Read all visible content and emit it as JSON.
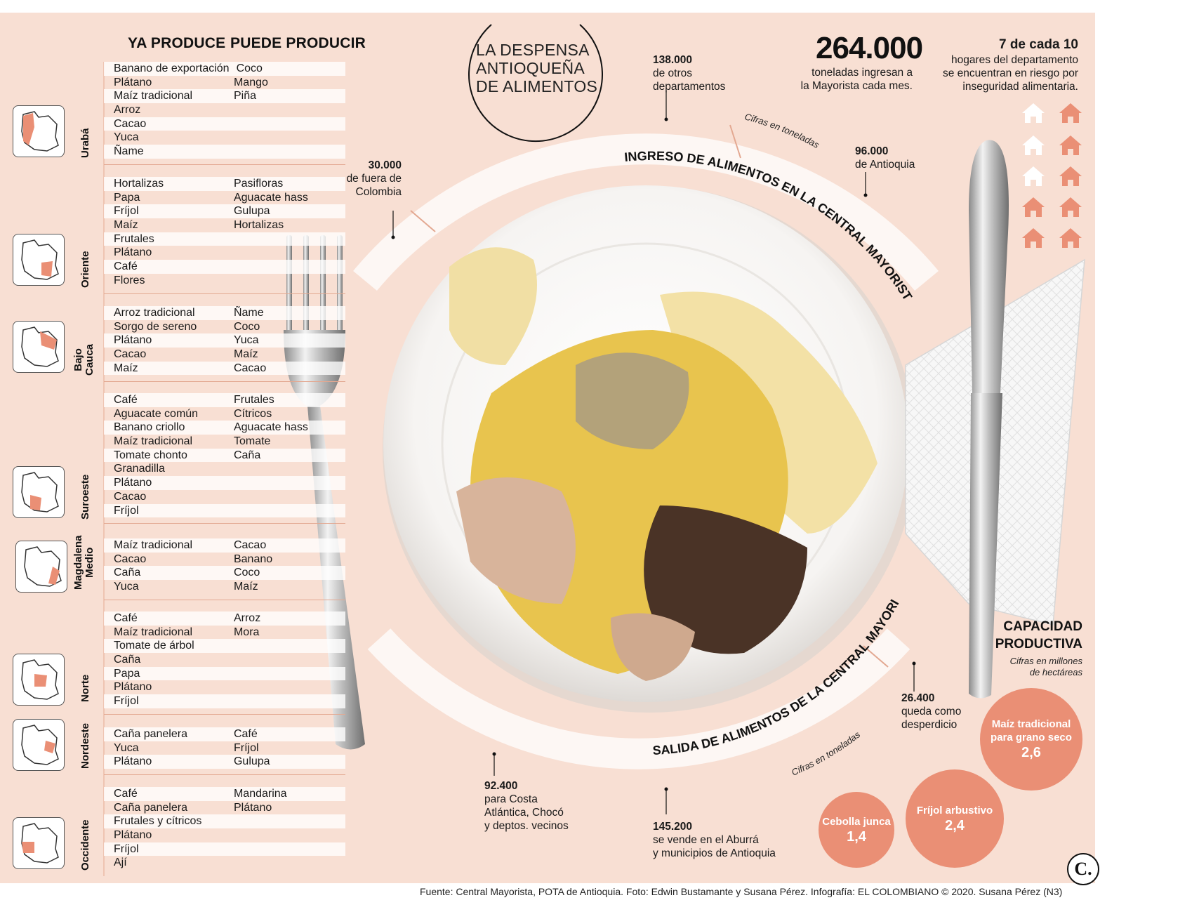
{
  "title": {
    "line1": "LA DESPENSA",
    "line2": "ANTIOQUEÑA",
    "line3": "DE ALIMENTOS"
  },
  "columns": {
    "ya_produce": "YA PRODUCE",
    "puede_producir": "PUEDE PRODUCIR"
  },
  "regions": [
    {
      "name": "Urabá",
      "ya_produce": [
        "Banano de exportación",
        "Plátano",
        "Maíz tradicional",
        "Arroz",
        "Cacao",
        "Yuca",
        "Ñame"
      ],
      "puede_producir": [
        "Coco",
        "Mango",
        "Piña"
      ]
    },
    {
      "name": "Oriente",
      "ya_produce": [
        "Hortalizas",
        "Papa",
        "Fríjol",
        "Maíz",
        "Frutales",
        "Plátano",
        "Café",
        "Flores"
      ],
      "puede_producir": [
        "Pasifloras",
        "Aguacate hass",
        "Gulupa",
        "Hortalizas"
      ]
    },
    {
      "name": "Bajo Cauca",
      "name_line1": "Bajo",
      "name_line2": "Cauca",
      "ya_produce": [
        "Arroz tradicional",
        "Sorgo de sereno",
        "Plátano",
        "Cacao",
        "Maíz"
      ],
      "puede_producir": [
        "Ñame",
        "Coco",
        "Yuca",
        "Maíz",
        "Cacao"
      ]
    },
    {
      "name": "Suroeste",
      "ya_produce": [
        "Café",
        "Aguacate común",
        "Banano criollo",
        "Maíz tradicional",
        "Tomate chonto",
        "Granadilla",
        "Plátano",
        "Cacao",
        "Fríjol"
      ],
      "puede_producir": [
        "Frutales",
        "Cítricos",
        "Aguacate hass",
        "Tomate",
        "Caña"
      ]
    },
    {
      "name": "Magdalena Medio",
      "name_line1": "Magdalena",
      "name_line2": "Medio",
      "ya_produce": [
        "Maíz tradicional",
        "Cacao",
        "Caña",
        "Yuca"
      ],
      "puede_producir": [
        "Cacao",
        "Banano",
        "Coco",
        "Maíz"
      ]
    },
    {
      "name": "Norte",
      "ya_produce": [
        "Café",
        "Maíz tradicional",
        "Tomate de árbol",
        "Caña",
        "Papa",
        "Plátano",
        "Fríjol"
      ],
      "puede_producir": [
        "Arroz",
        "Mora"
      ]
    },
    {
      "name": "Nordeste",
      "ya_produce": [
        "Caña panelera",
        "Yuca",
        "Plátano"
      ],
      "puede_producir": [
        "Café",
        "Fríjol",
        "Gulupa"
      ]
    },
    {
      "name": "Occidente",
      "ya_produce": [
        "Café",
        "Caña panelera",
        "Frutales y cítricos",
        "Plátano",
        "Fríjol",
        "Ají"
      ],
      "puede_producir": [
        "Mandarina",
        "Plátano"
      ]
    }
  ],
  "ingreso": {
    "label": "INGRESO DE ALIMENTOS EN LA CENTRAL MAYORISTA",
    "units": "Cifras en toneladas",
    "otros_departamentos": {
      "value": "138.000",
      "text1": "de otros",
      "text2": "departamentos"
    },
    "antioquia": {
      "value": "96.000",
      "text1": "de Antioquia"
    },
    "fuera_colombia": {
      "value": "30.000",
      "text1": "de fuera de",
      "text2": "Colombia"
    }
  },
  "total": {
    "value": "264.000",
    "text1": "toneladas ingresan a",
    "text2": "la Mayorista cada mes."
  },
  "hogares": {
    "headline": "7 de cada 10",
    "text1": "hogares del departamento",
    "text2": "se encuentran en riesgo por",
    "text3": "inseguridad alimentaria.",
    "at_risk": 7,
    "total": 10
  },
  "salida": {
    "label": "SALIDA DE ALIMENTOS DE LA CENTRAL MAYORISTA",
    "units": "Cifras en toneladas",
    "costa": {
      "value": "92.400",
      "text1": "para Costa",
      "text2": "Atlántica, Chocó",
      "text3": "y deptos. vecinos"
    },
    "aburra": {
      "value": "145.200",
      "text1": "se vende en el Aburrá",
      "text2": "y municipios de Antioquia"
    },
    "desperdicio": {
      "value": "26.400",
      "text1": "queda como",
      "text2": "desperdicio"
    }
  },
  "capacidad": {
    "title1": "CAPACIDAD",
    "title2": "PRODUCTIVA",
    "sub1": "Cifras en millones",
    "sub2": "de hectáreas",
    "items": [
      {
        "label1": "Maíz tradicional",
        "label2": "para grano seco",
        "value": "2,6"
      },
      {
        "label1": "Fríjol arbustivo",
        "label2": "",
        "value": "2,4"
      },
      {
        "label1": "Cebolla junca",
        "label2": "",
        "value": "1,4"
      }
    ]
  },
  "footer": "Fuente: Central Mayorista, POTA de Antioquia. Foto: Edwin Bustamante y Susana Pérez. Infografía: EL COLOMBIANO © 2020. Susana Pérez (N3)",
  "logo": "C.",
  "colors": {
    "background": "#f8dfd3",
    "accent": "#ea8f75",
    "house_at_risk": "#ea8f75",
    "house_safe": "#ffffff"
  }
}
